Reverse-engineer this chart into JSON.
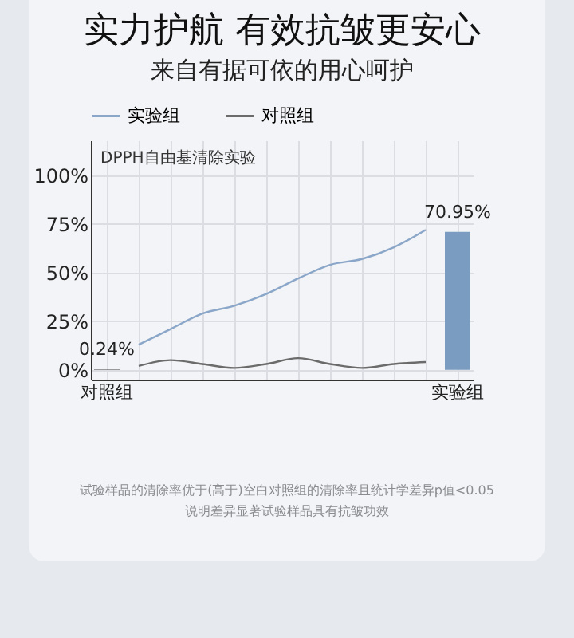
{
  "chart_data": {
    "type": "bar",
    "title": "实力护航 有效抗皱更安心",
    "subtitle": "来自有据可依的用心呵护",
    "categories": [
      "对照组",
      null,
      null,
      null,
      null,
      null,
      null,
      null,
      null,
      null,
      null,
      "实验组"
    ],
    "series": [
      {
        "colors": [
          "#5a5858",
          null,
          null,
          null,
          null,
          null,
          null,
          null,
          null,
          null,
          null,
          "#7a9cc0"
        ],
        "values": [
          0.24,
          null,
          null,
          null,
          null,
          null,
          null,
          null,
          null,
          null,
          null,
          70.95
        ],
        "value_labels": [
          "0.24%",
          null,
          null,
          null,
          null,
          null,
          null,
          null,
          null,
          null,
          null,
          "70.95%"
        ]
      },
      {
        "type": "line",
        "name": "实验组",
        "color": "#8aa6c8",
        "values": [
          null,
          13,
          21,
          29,
          33,
          39,
          47,
          54,
          57,
          63,
          72,
          null
        ]
      },
      {
        "type": "line",
        "name": "对照组",
        "color": "#6b6b6b",
        "values": [
          null,
          2,
          5,
          3,
          1,
          3,
          6,
          3,
          1,
          3,
          4,
          null
        ]
      }
    ],
    "ylim": [
      -5,
      118
    ],
    "yticks": [
      {
        "value": 0,
        "label": "0%"
      },
      {
        "value": 25,
        "label": "25%"
      },
      {
        "value": 50,
        "label": "50%"
      },
      {
        "value": 75,
        "label": "75%"
      },
      {
        "value": 100,
        "label": "100%"
      }
    ],
    "grid": true,
    "legend": "top",
    "marker": "none",
    "annotations": [
      "DPPH自由基清除实验",
      "试验样品的清除率优于(高于)空白对照组的清除率且统计学差异p值<0.05",
      "说明差异显著试验样品具有抗皱功效"
    ]
  }
}
